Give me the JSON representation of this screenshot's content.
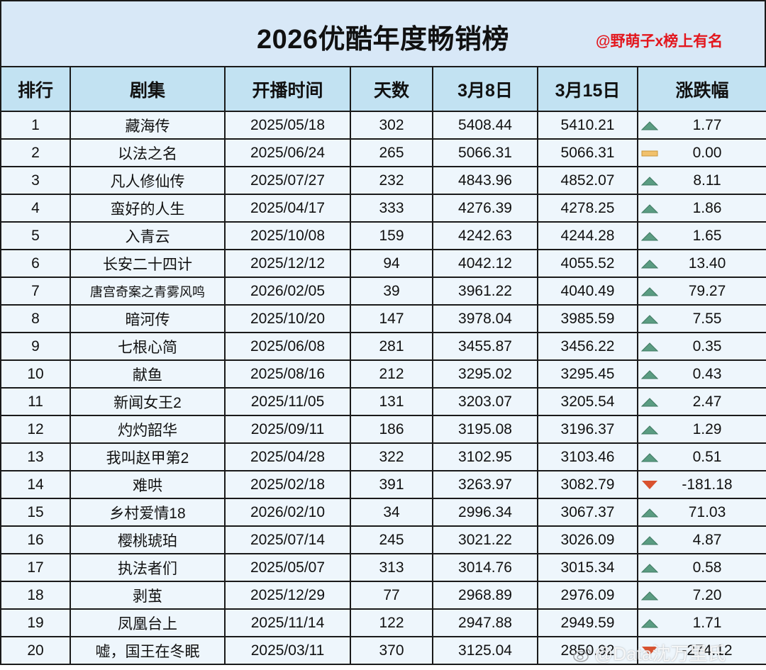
{
  "title": "2026优酷年度畅销榜",
  "credit": "@野萌子x榜上有名",
  "watermark": "@Data沈万里氏",
  "colors": {
    "title_bg": "#d8e8f7",
    "header_bg": "#c2e2f2",
    "row_bg": "#eef6fc",
    "credit_red": "#e3171e",
    "up_green": "#5a9c82",
    "flat_yellow": "#f1c16c",
    "down_red": "#d9522f"
  },
  "columns": [
    "排行",
    "剧集",
    "开播时间",
    "天数",
    "3月8日",
    "3月15日",
    "涨跌幅"
  ],
  "rows": [
    {
      "rank": "1",
      "name": "藏海传",
      "start": "2025/05/18",
      "days": "302",
      "mar8": "5408.44",
      "mar15": "5410.21",
      "trend": "up",
      "change": "1.77"
    },
    {
      "rank": "2",
      "name": "以法之名",
      "start": "2025/06/24",
      "days": "265",
      "mar8": "5066.31",
      "mar15": "5066.31",
      "trend": "flat",
      "change": "0.00"
    },
    {
      "rank": "3",
      "name": "凡人修仙传",
      "start": "2025/07/27",
      "days": "232",
      "mar8": "4843.96",
      "mar15": "4852.07",
      "trend": "up",
      "change": "8.11"
    },
    {
      "rank": "4",
      "name": "蛮好的人生",
      "start": "2025/04/17",
      "days": "333",
      "mar8": "4276.39",
      "mar15": "4278.25",
      "trend": "up",
      "change": "1.86"
    },
    {
      "rank": "5",
      "name": "入青云",
      "start": "2025/10/08",
      "days": "159",
      "mar8": "4242.63",
      "mar15": "4244.28",
      "trend": "up",
      "change": "1.65"
    },
    {
      "rank": "6",
      "name": "长安二十四计",
      "start": "2025/12/12",
      "days": "94",
      "mar8": "4042.12",
      "mar15": "4055.52",
      "trend": "up",
      "change": "13.40"
    },
    {
      "rank": "7",
      "name": "唐宫奇案之青雾风鸣",
      "start": "2026/02/05",
      "days": "39",
      "mar8": "3961.22",
      "mar15": "4040.49",
      "trend": "up",
      "change": "79.27"
    },
    {
      "rank": "8",
      "name": "暗河传",
      "start": "2025/10/20",
      "days": "147",
      "mar8": "3978.04",
      "mar15": "3985.59",
      "trend": "up",
      "change": "7.55"
    },
    {
      "rank": "9",
      "name": "七根心简",
      "start": "2025/06/08",
      "days": "281",
      "mar8": "3455.87",
      "mar15": "3456.22",
      "trend": "up",
      "change": "0.35"
    },
    {
      "rank": "10",
      "name": "献鱼",
      "start": "2025/08/16",
      "days": "212",
      "mar8": "3295.02",
      "mar15": "3295.45",
      "trend": "up",
      "change": "0.43"
    },
    {
      "rank": "11",
      "name": "新闻女王2",
      "start": "2025/11/05",
      "days": "131",
      "mar8": "3203.07",
      "mar15": "3205.54",
      "trend": "up",
      "change": "2.47"
    },
    {
      "rank": "12",
      "name": "灼灼韶华",
      "start": "2025/09/11",
      "days": "186",
      "mar8": "3195.08",
      "mar15": "3196.37",
      "trend": "up",
      "change": "1.29"
    },
    {
      "rank": "13",
      "name": "我叫赵甲第2",
      "start": "2025/04/28",
      "days": "322",
      "mar8": "3102.95",
      "mar15": "3103.46",
      "trend": "up",
      "change": "0.51"
    },
    {
      "rank": "14",
      "name": "难哄",
      "start": "2025/02/18",
      "days": "391",
      "mar8": "3263.97",
      "mar15": "3082.79",
      "trend": "down",
      "change": "-181.18"
    },
    {
      "rank": "15",
      "name": "乡村爱情18",
      "start": "2026/02/10",
      "days": "34",
      "mar8": "2996.34",
      "mar15": "3067.37",
      "trend": "up",
      "change": "71.03"
    },
    {
      "rank": "16",
      "name": "樱桃琥珀",
      "start": "2025/07/14",
      "days": "245",
      "mar8": "3021.22",
      "mar15": "3026.09",
      "trend": "up",
      "change": "4.87"
    },
    {
      "rank": "17",
      "name": "执法者们",
      "start": "2025/05/07",
      "days": "313",
      "mar8": "3014.76",
      "mar15": "3015.34",
      "trend": "up",
      "change": "0.58"
    },
    {
      "rank": "18",
      "name": "剥茧",
      "start": "2025/12/29",
      "days": "77",
      "mar8": "2968.89",
      "mar15": "2976.09",
      "trend": "up",
      "change": "7.20"
    },
    {
      "rank": "19",
      "name": "凤凰台上",
      "start": "2025/11/14",
      "days": "122",
      "mar8": "2947.88",
      "mar15": "2949.59",
      "trend": "up",
      "change": "1.71"
    },
    {
      "rank": "20",
      "name": "嘘，国王在冬眠",
      "start": "2025/03/11",
      "days": "370",
      "mar8": "3125.04",
      "mar15": "2850.92",
      "trend": "down",
      "change": "-274.12"
    }
  ]
}
